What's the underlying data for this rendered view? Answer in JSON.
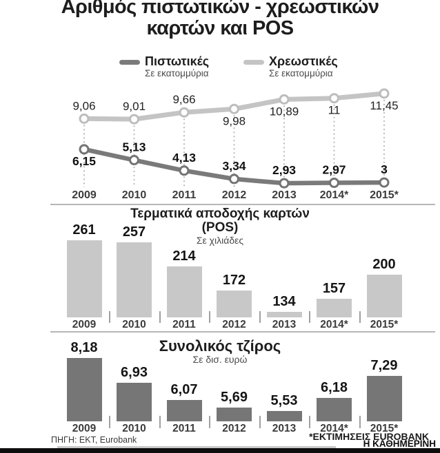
{
  "title": {
    "line1": "Αριθμός πιστωτικών - χρεωστικών",
    "line2": "καρτών και POS"
  },
  "legend": {
    "items": [
      {
        "label": "Πιστωτικές",
        "sublabel": "Σε εκατομμύρια",
        "color": "#7b7b7b"
      },
      {
        "label": "Χρεωστικές",
        "sublabel": "Σε εκατομμύρια",
        "color": "#c4c4c4"
      }
    ]
  },
  "chart_data": [
    {
      "type": "line",
      "name": "cards-credit-vs-debit",
      "unit": "Σε εκατομμύρια",
      "categories": [
        "2009",
        "2010",
        "2011",
        "2012",
        "2013",
        "2014*",
        "2015*"
      ],
      "series": [
        {
          "name": "Πιστωτικές",
          "color": "#7a7a7a",
          "values": [
            6.15,
            5.13,
            4.13,
            3.34,
            2.93,
            2.97,
            3
          ],
          "labels": [
            "6,15",
            "5,13",
            "4,13",
            "3,34",
            "2,93",
            "2,97",
            "3"
          ],
          "label_side": [
            "below",
            "above",
            "above",
            "above",
            "above",
            "above",
            "above"
          ]
        },
        {
          "name": "Χρεωστικές",
          "color": "#c4c4c4",
          "values": [
            9.06,
            9.01,
            9.66,
            9.98,
            10.89,
            11,
            11.45
          ],
          "labels": [
            "9,06",
            "9,01",
            "9,66",
            "9,98",
            "10,89",
            "11",
            "11,45"
          ],
          "label_side": [
            "above",
            "above",
            "above",
            "below",
            "below",
            "below",
            "below"
          ]
        }
      ],
      "ylim": [
        2.5,
        12.5
      ],
      "grid": false,
      "legend_position": "top"
    },
    {
      "type": "bar",
      "title": "Τερματικά αποδοχής καρτών",
      "title2": "(POS)",
      "subtitle": "Σε χιλιάδες",
      "categories": [
        "2009",
        "2010",
        "2011",
        "2012",
        "2013",
        "2014*",
        "2015*"
      ],
      "values": [
        261,
        257,
        214,
        172,
        134,
        157,
        200
      ],
      "labels": [
        "261",
        "257",
        "214",
        "172",
        "134",
        "157",
        "200"
      ],
      "bar_color": "#c8c8c8",
      "baseline_value": 124,
      "ylim": [
        124,
        261
      ]
    },
    {
      "type": "bar",
      "title": "Συνολικός τζίρος",
      "subtitle": "Σε δισ. ευρώ",
      "categories": [
        "2009",
        "2010",
        "2011",
        "2012",
        "2013",
        "2014*",
        "2015*"
      ],
      "values": [
        8.18,
        6.93,
        6.07,
        5.69,
        5.53,
        6.18,
        7.29
      ],
      "labels": [
        "8,18",
        "6,93",
        "6,07",
        "5,69",
        "5,53",
        "6,18",
        "7,29"
      ],
      "bar_color": "#767676",
      "baseline_value": 5,
      "ylim": [
        5,
        8.18
      ]
    }
  ],
  "footer": {
    "source": "ΠΗΓΗ: ΕΚΤ, Eurobank",
    "estimate_note": "*ΕΚΤΙΜΗΣΕΙΣ EUROBANK",
    "brand": "Η ΚΑΘΗΜΕΡΙΝΗ"
  }
}
